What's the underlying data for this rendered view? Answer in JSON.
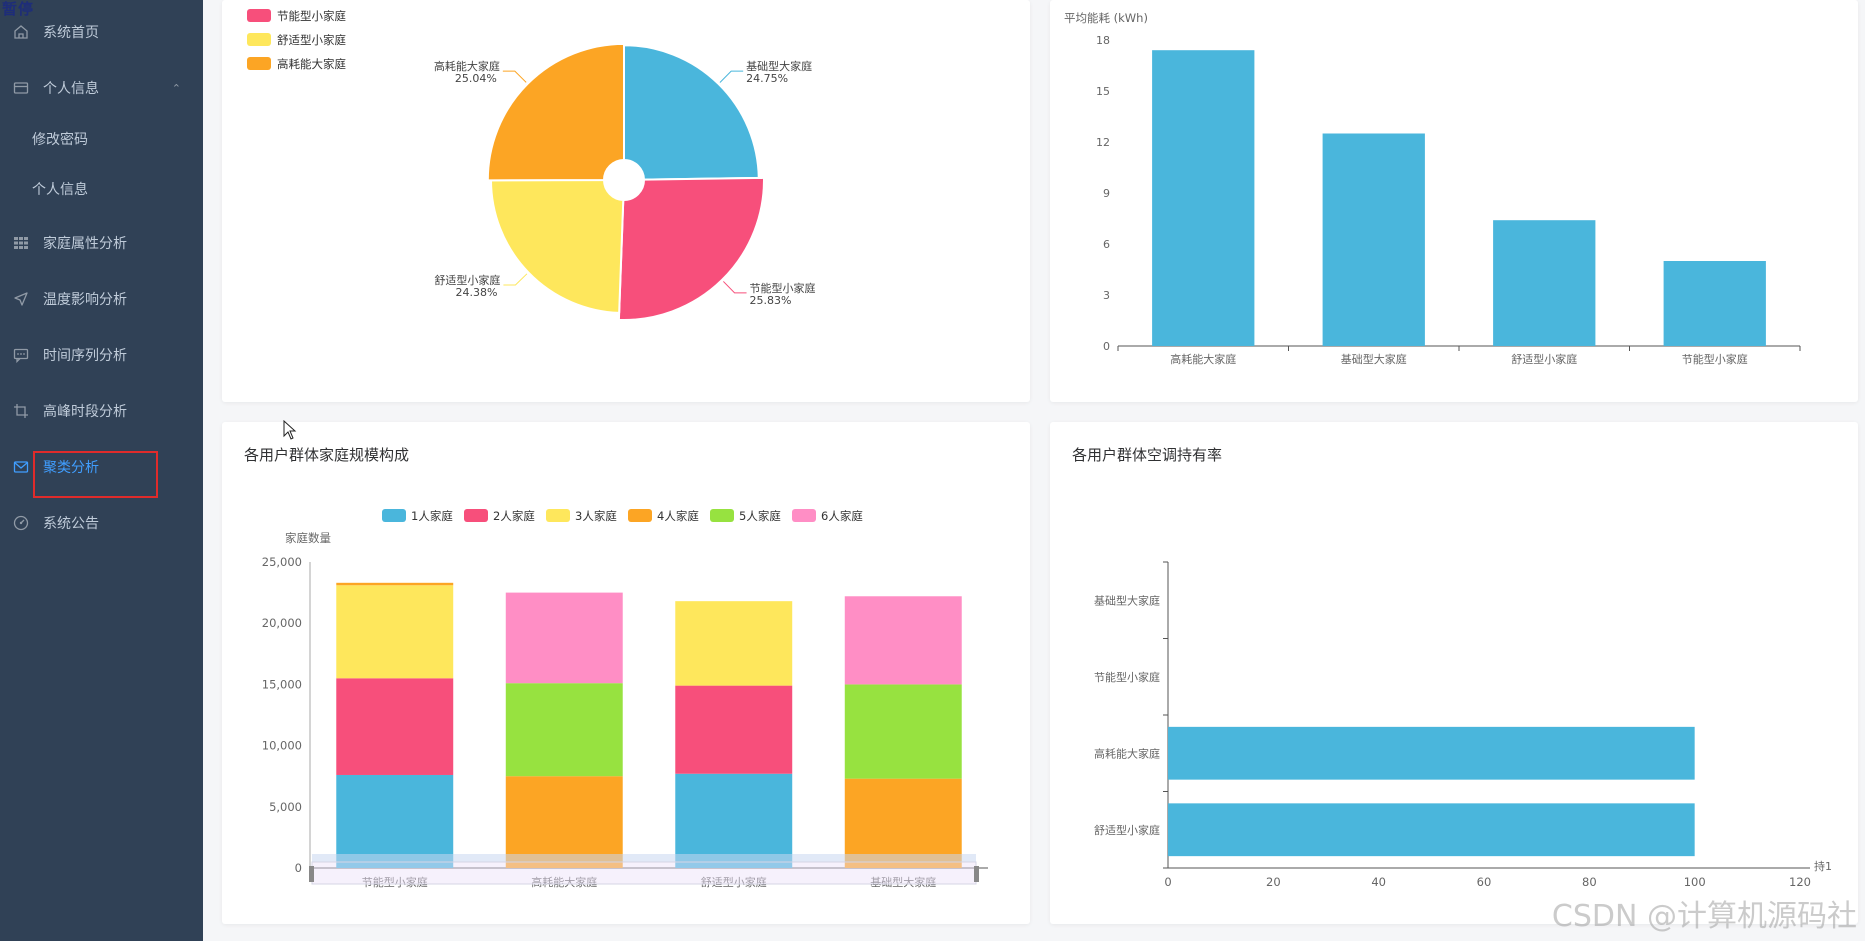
{
  "sidebar": {
    "corner_text": "暂停",
    "items": [
      {
        "label": "系统首页",
        "icon": "home-icon"
      },
      {
        "label": "个人信息",
        "icon": "card-icon"
      },
      {
        "label": "修改密码"
      },
      {
        "label": "个人信息"
      },
      {
        "label": "家庭属性分析",
        "icon": "grid-icon"
      },
      {
        "label": "温度影响分析",
        "icon": "send-icon"
      },
      {
        "label": "时间序列分析",
        "icon": "message-icon"
      },
      {
        "label": "高峰时段分析",
        "icon": "crop-icon"
      },
      {
        "label": "聚类分析",
        "icon": "mail-icon"
      },
      {
        "label": "系统公告",
        "icon": "gauge-icon"
      }
    ],
    "active_color": "#409eff",
    "background": "#304156"
  },
  "charts": {
    "pie": {
      "chart_data": {
        "type": "pie",
        "rose": true,
        "legend": [
          "节能型小家庭",
          "舒适型小家庭",
          "高耗能大家庭"
        ],
        "legend_placement": "top-left",
        "slices": [
          {
            "name": "基础型大家庭",
            "percent": "24.75%",
            "value": 24.75,
            "color": "#4ab6dc"
          },
          {
            "name": "节能型小家庭",
            "percent": "25.83%",
            "value": 25.83,
            "color": "#f74f7b"
          },
          {
            "name": "舒适型小家庭",
            "percent": "24.38%",
            "value": 24.38,
            "color": "#fee75c"
          },
          {
            "name": "高耗能大家庭",
            "percent": "25.04%",
            "value": 25.04,
            "color": "#fca524"
          }
        ]
      }
    },
    "energy_bar": {
      "chart_data": {
        "type": "bar",
        "ylabel": "平均能耗 (kWh)",
        "ylim": [
          0,
          18
        ],
        "yticks": [
          "0",
          "3",
          "6",
          "9",
          "12",
          "15",
          "18"
        ],
        "categories": [
          "高耗能大家庭",
          "基础型大家庭",
          "舒适型小家庭",
          "节能型小家庭"
        ],
        "values": [
          17.4,
          12.5,
          7.4,
          5.0
        ],
        "color": "#4ab6dc",
        "grid": false
      }
    },
    "size_stack": {
      "title": "各用户群体家庭规模构成",
      "chart_data": {
        "type": "bar",
        "stacked": true,
        "ylabel": "家庭数量",
        "ylim": [
          0,
          25000
        ],
        "yticks": [
          "0",
          "5,000",
          "10,000",
          "15,000",
          "20,000",
          "25,000"
        ],
        "categories": [
          "节能型小家庭",
          "高耗能大家庭",
          "舒适型小家庭",
          "基础型大家庭"
        ],
        "legend_placement": "top-center",
        "series": [
          {
            "name": "1人家庭",
            "color": "#4ab6dc",
            "values": [
              7600,
              0,
              7700,
              0
            ]
          },
          {
            "name": "2人家庭",
            "color": "#f74f7b",
            "values": [
              7900,
              0,
              7200,
              0
            ]
          },
          {
            "name": "3人家庭",
            "color": "#fee75c",
            "values": [
              7600,
              0,
              6900,
              0
            ]
          },
          {
            "name": "4人家庭",
            "color": "#fca524",
            "values": [
              200,
              7500,
              0,
              7300
            ]
          },
          {
            "name": "5人家庭",
            "color": "#97e240",
            "values": [
              0,
              7600,
              0,
              7700
            ]
          },
          {
            "name": "6人家庭",
            "color": "#ff8ec5",
            "values": [
              0,
              7400,
              0,
              7200
            ]
          }
        ]
      }
    },
    "ac_bar": {
      "title": "各用户群体空调持有率",
      "chart_data": {
        "type": "bar",
        "orientation": "horizontal",
        "xlabel": "持1",
        "xlim": [
          0,
          120
        ],
        "xticks": [
          "0",
          "20",
          "40",
          "60",
          "80",
          "100",
          "120"
        ],
        "categories": [
          "基础型大家庭",
          "节能型小家庭",
          "高耗能大家庭",
          "舒适型小家庭"
        ],
        "values": [
          0,
          0,
          100,
          100
        ],
        "color": "#4ab6dc"
      }
    }
  },
  "watermark": "CSDN @计算机源码社"
}
